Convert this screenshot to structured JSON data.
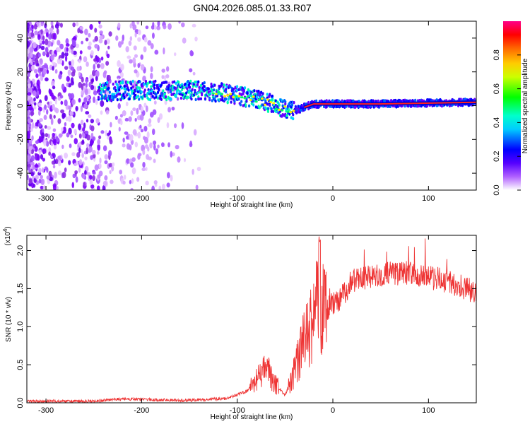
{
  "title": "GN04.2026.085.01.33.R07",
  "chart_data": [
    {
      "type": "heatmap",
      "xlabel": "Height of straight line (km)",
      "ylabel": "Frequency (Hz)",
      "xlim": [
        -320,
        150
      ],
      "ylim": [
        -50,
        50
      ],
      "x_ticks": [
        -300,
        -200,
        -100,
        0,
        100
      ],
      "y_ticks": [
        -40,
        -20,
        0,
        20,
        40
      ],
      "colorbar": {
        "label": "Normalized spectral amplitude",
        "range": [
          0,
          1
        ],
        "ticks": [
          0.0,
          0.2,
          0.4,
          0.6,
          0.8
        ],
        "colormap": [
          "#ffffff",
          "#8a00ff",
          "#0000ff",
          "#00ffff",
          "#00ff00",
          "#ffff00",
          "#ff8800",
          "#ff0000",
          "#ff0080"
        ]
      },
      "signal_trace": {
        "x": [
          -240,
          -220,
          -200,
          -180,
          -160,
          -140,
          -120,
          -100,
          -80,
          -60,
          -45,
          -35,
          -20,
          0,
          50,
          100,
          150
        ],
        "y": [
          8,
          9,
          9,
          9,
          9,
          9,
          8,
          6,
          4,
          0,
          -3,
          -2,
          1,
          1,
          1,
          1.5,
          2
        ]
      }
    },
    {
      "type": "line",
      "xlabel": "Height of straight line (km)",
      "ylabel": "SNR (10 * v/v)",
      "y_multiplier_label": "(x10",
      "y_multiplier_exp": "4",
      "xlim": [
        -320,
        150
      ],
      "ylim": [
        0,
        2.2
      ],
      "x_ticks": [
        -300,
        -200,
        -100,
        0,
        100
      ],
      "y_ticks": [
        0.0,
        0.5,
        1.0,
        1.5,
        2.0
      ],
      "color": "#ee3333",
      "envelope": {
        "x": [
          -320,
          -250,
          -220,
          -150,
          -110,
          -90,
          -80,
          -70,
          -60,
          -50,
          -40,
          -30,
          -20,
          -15,
          -10,
          0,
          10,
          20,
          40,
          60,
          80,
          100,
          120,
          140,
          150
        ],
        "y": [
          0.02,
          0.02,
          0.05,
          0.03,
          0.06,
          0.15,
          0.3,
          0.45,
          0.25,
          0.1,
          0.4,
          0.8,
          1.1,
          1.5,
          1.2,
          1.3,
          1.4,
          1.6,
          1.65,
          1.7,
          1.7,
          1.65,
          1.6,
          1.5,
          1.45
        ]
      }
    }
  ]
}
